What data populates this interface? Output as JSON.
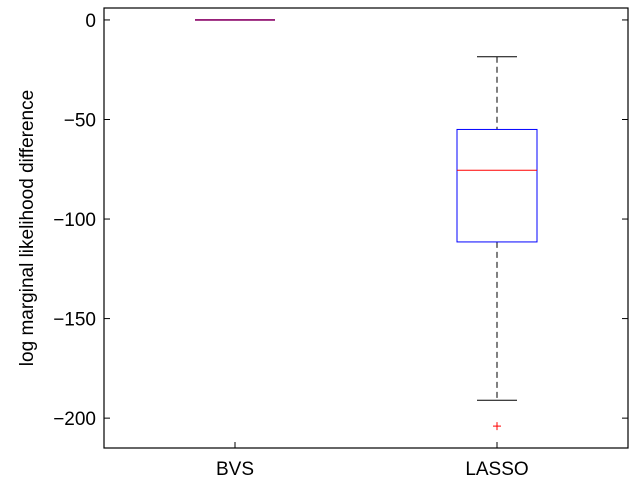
{
  "chart_data": {
    "type": "boxplot",
    "title": "",
    "xlabel": "",
    "ylabel": "log marginal likelihood difference",
    "ylim": [
      -215,
      6
    ],
    "yticks": [
      0,
      -50,
      -100,
      -150,
      -200
    ],
    "ytick_labels": [
      "0",
      "−50",
      "−100",
      "−150",
      "−200"
    ],
    "categories": [
      "BVS",
      "LASSO"
    ],
    "boxes": [
      {
        "category": "BVS",
        "whisker_low": 0,
        "q1": 0,
        "median": 0,
        "q3": 0,
        "whisker_high": 0,
        "outliers": []
      },
      {
        "category": "LASSO",
        "whisker_low": -191,
        "q1": -111.5,
        "median": -75.5,
        "q3": -55,
        "whisker_high": -18.5,
        "outliers": [
          -204
        ]
      }
    ],
    "grid": false,
    "colors": {
      "box": "#0000ff",
      "median": "#ff0000",
      "whisker": "#000000",
      "outlier": "#ff0000",
      "collapsed_box": "#880066"
    }
  }
}
